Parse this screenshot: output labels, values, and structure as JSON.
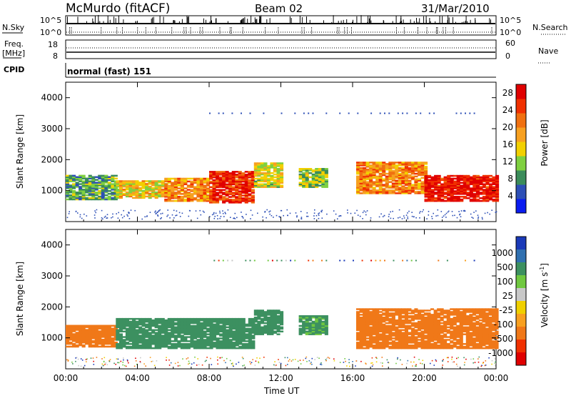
{
  "header": {
    "station": "McMurdo (fitACF)",
    "beam": "Beam 02",
    "date": "31/Mar/2010"
  },
  "top_panels": {
    "nsky_label": "N.Sky",
    "nsky_ticks": [
      "10^5",
      "10^0"
    ],
    "nsearch_label": "N.Search",
    "nsearch_ticks": [
      "10^5",
      "10^0"
    ],
    "freq_label": "Freq.",
    "freq_unit": "[MHz]",
    "freq_ticks": [
      "18",
      "8"
    ],
    "nave_label": "Nave",
    "nave_ticks": [
      "60",
      "0"
    ],
    "cpid_label": "CPID",
    "cpid_value": "normal (fast) 151"
  },
  "colors": {
    "power": [
      "#0a1cf0",
      "#2d4fb6",
      "#3b8c5a",
      "#7fd040",
      "#f2d000",
      "#f7a020",
      "#f07010",
      "#f03000",
      "#e00000"
    ],
    "velocity": [
      "#1a3ab8",
      "#3070b0",
      "#3c9060",
      "#70c840",
      "#c8c8c8",
      "#f0d000",
      "#f8a020",
      "#f07818",
      "#f03000",
      "#e00000"
    ]
  },
  "chart_data": [
    {
      "type": "heatmap",
      "title": "Power",
      "ylabel": "Slant Range [km]",
      "ylim": [
        0,
        4500
      ],
      "y_ticks": [
        "1000",
        "2000",
        "3000",
        "4000"
      ],
      "x_ticks": [
        "00:00",
        "04:00",
        "08:00",
        "12:00",
        "16:00",
        "20:00",
        "00:00"
      ],
      "colorbar": {
        "label": "Power [dB]",
        "ticks": [
          "4",
          "8",
          "12",
          "16",
          "20",
          "24",
          "28"
        ],
        "range": [
          0,
          30
        ]
      },
      "regions": [
        {
          "t0": 0.0,
          "t1": 2.8,
          "r0": 700,
          "r1": 1500,
          "value": 10
        },
        {
          "t0": 2.8,
          "t1": 5.5,
          "r0": 750,
          "r1": 1300,
          "value": 16
        },
        {
          "t0": 5.5,
          "t1": 8.0,
          "r0": 650,
          "r1": 1400,
          "value": 20
        },
        {
          "t0": 8.0,
          "t1": 10.5,
          "r0": 600,
          "r1": 1600,
          "value": 26
        },
        {
          "t0": 10.5,
          "t1": 12.0,
          "r0": 1100,
          "r1": 1900,
          "value": 14
        },
        {
          "t0": 13.0,
          "t1": 14.5,
          "r0": 1100,
          "r1": 1700,
          "value": 12
        },
        {
          "t0": 16.2,
          "t1": 20.0,
          "r0": 900,
          "r1": 1900,
          "value": 20
        },
        {
          "t0": 20.0,
          "t1": 24.0,
          "r0": 650,
          "r1": 1500,
          "value": 28
        }
      ]
    },
    {
      "type": "heatmap",
      "title": "Velocity",
      "ylabel": "Slant Range [km]",
      "xlabel": "Time UT",
      "ylim": [
        0,
        4500
      ],
      "y_ticks": [
        "1000",
        "2000",
        "3000",
        "4000"
      ],
      "x_ticks": [
        "00:00",
        "04:00",
        "08:00",
        "12:00",
        "16:00",
        "20:00",
        "00:00"
      ],
      "colorbar": {
        "label": "Velocity [m s",
        "label_sup": "-1",
        "label_end": "]",
        "ticks": [
          "1000",
          "500",
          "100",
          "25",
          "-25",
          "-100",
          "-500",
          "-1000"
        ]
      },
      "regions": [
        {
          "t0": 0.0,
          "t1": 2.8,
          "r0": 700,
          "r1": 1400,
          "value": -150
        },
        {
          "t0": 2.8,
          "t1": 10.5,
          "r0": 650,
          "r1": 1600,
          "value": 150
        },
        {
          "t0": 10.5,
          "t1": 12.0,
          "r0": 1100,
          "r1": 1900,
          "value": 150
        },
        {
          "t0": 13.0,
          "t1": 14.5,
          "r0": 1100,
          "r1": 1700,
          "value": 120
        },
        {
          "t0": 16.2,
          "t1": 24.0,
          "r0": 650,
          "r1": 1950,
          "value": -200
        }
      ]
    }
  ]
}
